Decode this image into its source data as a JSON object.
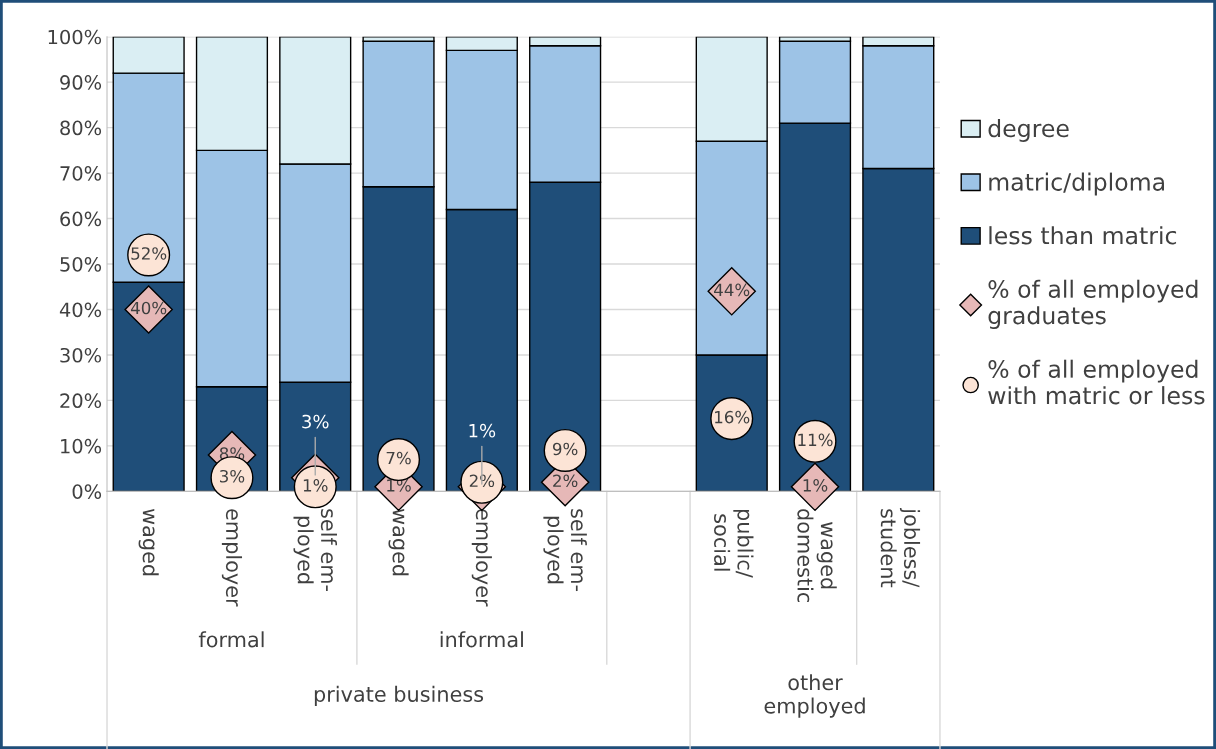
{
  "chart_data": {
    "type": "bar",
    "stacked": true,
    "categories": [
      "waged",
      "employer",
      "self em-\nployed",
      "waged",
      "employer",
      "self em-\nployed",
      null,
      "public/\nsocial",
      "waged\ndomestic",
      "jobless/\nstudent"
    ],
    "series": [
      {
        "name": "less than matric",
        "color": "#1f4e79",
        "values": [
          46,
          23,
          24,
          67,
          62,
          68,
          null,
          30,
          81,
          71
        ]
      },
      {
        "name": "matric/diploma",
        "color": "#9dc3e6",
        "values": [
          46,
          52,
          48,
          32,
          35,
          30,
          null,
          47,
          18,
          27
        ]
      },
      {
        "name": "degree",
        "color": "#daeef3",
        "values": [
          8,
          25,
          28,
          1,
          3,
          2,
          null,
          23,
          1,
          2
        ]
      },
      {
        "name": "% of all employed\ngraduates",
        "type": "scatter",
        "marker": "diamond",
        "color": "#e6b8b7",
        "values": [
          40,
          8,
          3,
          1,
          1,
          2,
          null,
          44,
          1,
          null
        ],
        "value_labels": [
          "40%",
          "8%",
          "3%",
          "1%",
          "1%",
          "2%",
          null,
          "44%",
          "1%",
          null
        ]
      },
      {
        "name": "% of all employed\nwith matric or less",
        "type": "scatter",
        "marker": "circle",
        "color": "#fce4d6",
        "values": [
          52,
          3,
          1,
          7,
          2,
          9,
          null,
          16,
          11,
          null
        ],
        "value_labels": [
          "52%",
          "3%",
          "1%",
          "7%",
          "2%",
          "9%",
          null,
          "16%",
          "11%",
          null
        ]
      }
    ],
    "ylim": [
      0,
      100
    ],
    "yticks": [
      {
        "value": 0,
        "label": "0%"
      },
      {
        "value": 10,
        "label": "10%"
      },
      {
        "value": 20,
        "label": "20%"
      },
      {
        "value": 30,
        "label": "30%"
      },
      {
        "value": 40,
        "label": "40%"
      },
      {
        "value": 50,
        "label": "50%"
      },
      {
        "value": 60,
        "label": "60%"
      },
      {
        "value": 70,
        "label": "70%"
      },
      {
        "value": 80,
        "label": "80%"
      },
      {
        "value": 90,
        "label": "90%"
      },
      {
        "value": 100,
        "label": "100%"
      }
    ],
    "grid": "y",
    "legend": "right",
    "annotations": [
      "formal",
      "informal",
      "private business",
      "other\nemployed"
    ]
  }
}
